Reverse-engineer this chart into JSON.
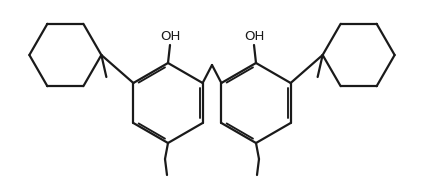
{
  "background_color": "#ffffff",
  "line_color": "#1a1a1a",
  "line_width": 1.6,
  "dbo": 0.012,
  "figsize": [
    4.24,
    1.88
  ],
  "dpi": 100
}
